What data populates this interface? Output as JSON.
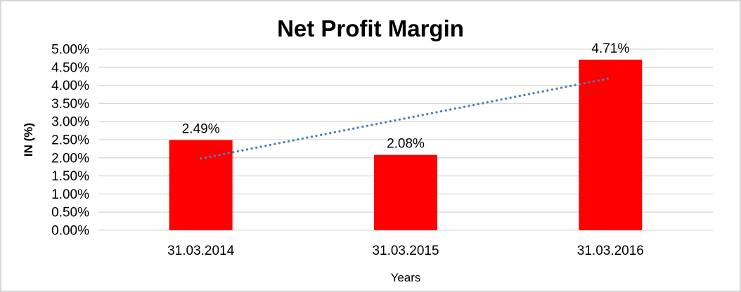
{
  "chart_data": {
    "type": "bar",
    "title": "Net Profit Margin",
    "xlabel": "Years",
    "ylabel": "IN (%)",
    "categories": [
      "31.03.2014",
      "31.03.2015",
      "31.03.2016"
    ],
    "values": [
      2.49,
      2.08,
      4.71
    ],
    "bar_labels": [
      "2.49%",
      "2.08%",
      "4.71%"
    ],
    "y_ticks": [
      "0.00%",
      "0.50%",
      "1.00%",
      "1.50%",
      "2.00%",
      "2.50%",
      "3.00%",
      "3.50%",
      "4.00%",
      "4.50%",
      "5.00%"
    ],
    "ylim": [
      0,
      5
    ],
    "grid": "horizontal",
    "legend": "none",
    "bar_color": "#ff0000",
    "gridline_color": "#d9d9d9",
    "text_color": "#000000",
    "trendline": {
      "style": "dotted",
      "color": "#4a7ebb",
      "start": {
        "category_index": 0,
        "value": 1.98
      },
      "end": {
        "category_index": 2,
        "value": 4.2
      }
    }
  }
}
